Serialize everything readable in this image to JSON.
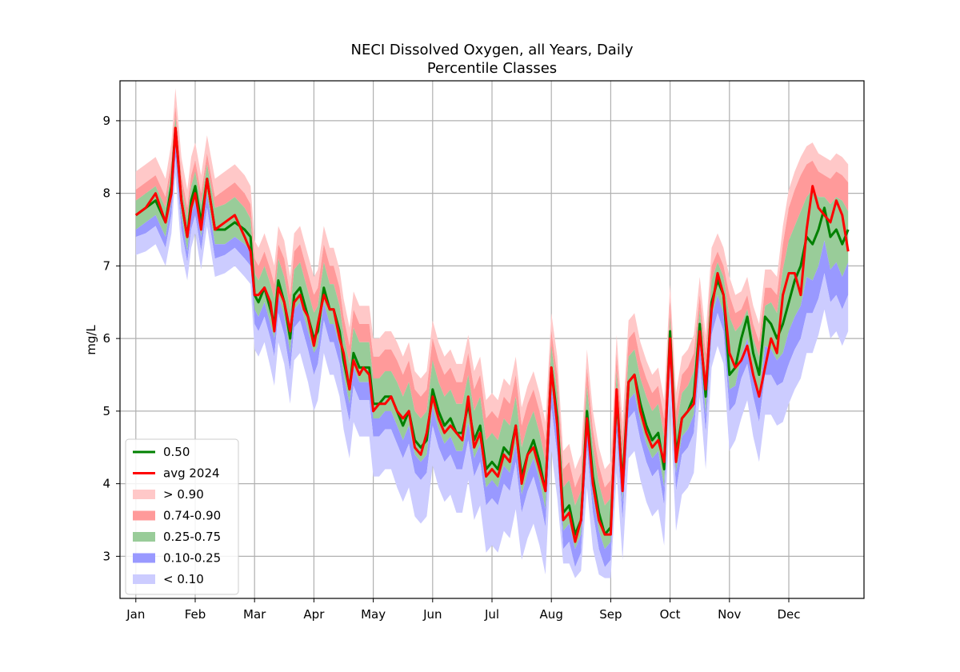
{
  "chart_data": {
    "type": "area",
    "title": "NECI Dissolved Oxygen, all Years, Daily",
    "subtitle": "Percentile Classes",
    "xlabel": "",
    "ylabel": "mg/L",
    "x_unit": "day of year",
    "xlim": [
      -8,
      368
    ],
    "ylim": [
      2.42,
      9.55
    ],
    "grid": true,
    "legend_position": "lower-left",
    "x_ticks": [
      {
        "label": "Jan",
        "day": 0
      },
      {
        "label": "Feb",
        "day": 30
      },
      {
        "label": "Mar",
        "day": 60
      },
      {
        "label": "Apr",
        "day": 90
      },
      {
        "label": "May",
        "day": 120
      },
      {
        "label": "Jun",
        "day": 150
      },
      {
        "label": "Jul",
        "day": 180
      },
      {
        "label": "Aug",
        "day": 210
      },
      {
        "label": "Sep",
        "day": 240
      },
      {
        "label": "Oct",
        "day": 270
      },
      {
        "label": "Nov",
        "day": 300
      },
      {
        "label": "Dec",
        "day": 330
      }
    ],
    "y_ticks": [
      3,
      4,
      5,
      6,
      7,
      8,
      9
    ],
    "colors": {
      "median": "#008000",
      "avg2024": "#ff0000",
      "band_gt90": "#ffc8c8",
      "band_74_90": "#ff9a9a",
      "band_25_75": "#99cc99",
      "band_10_25": "#9999ff",
      "band_lt10": "#ccccff"
    },
    "legend": [
      {
        "label": "0.50",
        "kind": "line",
        "color": "#008000"
      },
      {
        "label": "avg 2024",
        "kind": "line",
        "color": "#ff0000"
      },
      {
        "label": "> 0.90",
        "kind": "band",
        "color": "#ffc8c8"
      },
      {
        "label": "0.74-0.90",
        "kind": "band",
        "color": "#ff9a9a"
      },
      {
        "label": "0.25-0.75",
        "kind": "band",
        "color": "#99cc99"
      },
      {
        "label": "0.10-0.25",
        "kind": "band",
        "color": "#9999ff"
      },
      {
        "label": "< 0.10",
        "kind": "band",
        "color": "#ccccff"
      }
    ],
    "series": [
      {
        "name": "0.50",
        "x": [
          0,
          5,
          10,
          15,
          18,
          20,
          23,
          26,
          28,
          30,
          33,
          36,
          40,
          45,
          50,
          55,
          58,
          60,
          62,
          65,
          68,
          70,
          72,
          75,
          78,
          80,
          83,
          85,
          87,
          90,
          92,
          95,
          98,
          100,
          103,
          105,
          108,
          110,
          113,
          115,
          118,
          120,
          123,
          126,
          129,
          132,
          135,
          138,
          141,
          144,
          147,
          150,
          153,
          156,
          159,
          162,
          165,
          168,
          171,
          174,
          177,
          180,
          183,
          186,
          189,
          192,
          195,
          198,
          201,
          204,
          207,
          210,
          213,
          216,
          219,
          222,
          225,
          228,
          231,
          234,
          237,
          240,
          243,
          246,
          249,
          252,
          255,
          258,
          261,
          264,
          267,
          270,
          273,
          276,
          279,
          282,
          285,
          288,
          291,
          294,
          297,
          300,
          303,
          306,
          309,
          312,
          315,
          318,
          321,
          324,
          327,
          330,
          333,
          336,
          339,
          342,
          345,
          348,
          351,
          354,
          357,
          360
        ],
        "y": [
          7.7,
          7.8,
          7.9,
          7.6,
          8.1,
          8.9,
          7.9,
          7.4,
          7.9,
          8.1,
          7.6,
          8.2,
          7.5,
          7.5,
          7.6,
          7.5,
          7.4,
          6.6,
          6.5,
          6.7,
          6.4,
          6.2,
          6.8,
          6.5,
          6.0,
          6.6,
          6.7,
          6.5,
          6.3,
          6.0,
          6.1,
          6.7,
          6.4,
          6.4,
          6.1,
          5.7,
          5.3,
          5.8,
          5.6,
          5.6,
          5.6,
          5.1,
          5.1,
          5.2,
          5.2,
          5.0,
          4.8,
          5.0,
          4.6,
          4.5,
          4.6,
          5.3,
          5.0,
          4.8,
          4.9,
          4.7,
          4.7,
          5.1,
          4.6,
          4.8,
          4.2,
          4.3,
          4.2,
          4.5,
          4.4,
          4.8,
          4.1,
          4.4,
          4.6,
          4.3,
          3.9,
          5.6,
          4.9,
          3.6,
          3.7,
          3.3,
          3.5,
          5.0,
          4.1,
          3.6,
          3.3,
          3.4,
          5.2,
          4.0,
          5.4,
          5.5,
          5.1,
          4.8,
          4.6,
          4.7,
          4.2,
          6.1,
          4.4,
          4.9,
          5.0,
          5.2,
          6.2,
          5.2,
          6.5,
          6.8,
          6.6,
          5.5,
          5.6,
          6.0,
          6.3,
          5.8,
          5.5,
          6.3,
          6.2,
          6.0,
          6.2,
          6.5,
          6.8,
          7.0,
          7.4,
          7.3,
          7.5,
          7.8,
          7.4,
          7.5,
          7.3,
          7.5
        ]
      },
      {
        "name": "avg 2024",
        "x": [
          0,
          5,
          10,
          15,
          18,
          20,
          23,
          26,
          28,
          30,
          33,
          36,
          40,
          45,
          50,
          55,
          58,
          60,
          62,
          65,
          68,
          70,
          72,
          75,
          78,
          80,
          83,
          85,
          87,
          90,
          92,
          95,
          98,
          100,
          103,
          105,
          108,
          110,
          113,
          115,
          118,
          120,
          123,
          126,
          129,
          132,
          135,
          138,
          141,
          144,
          147,
          150,
          153,
          156,
          159,
          162,
          165,
          168,
          171,
          174,
          177,
          180,
          183,
          186,
          189,
          192,
          195,
          198,
          201,
          204,
          207,
          210,
          213,
          216,
          219,
          222,
          225,
          228,
          231,
          234,
          237,
          240,
          243,
          246,
          249,
          252,
          255,
          258,
          261,
          264,
          267,
          270,
          273,
          276,
          279,
          282,
          285,
          288,
          291,
          294,
          297,
          300,
          303,
          306,
          309,
          312,
          315,
          318,
          321,
          324,
          327,
          330,
          333,
          336,
          339,
          342,
          345,
          348,
          351,
          354,
          357,
          360
        ],
        "y": [
          7.7,
          7.8,
          8.0,
          7.6,
          8.0,
          8.9,
          7.9,
          7.4,
          7.8,
          8.0,
          7.5,
          8.2,
          7.5,
          7.6,
          7.7,
          7.4,
          7.2,
          6.6,
          6.6,
          6.7,
          6.5,
          6.1,
          6.7,
          6.5,
          6.1,
          6.5,
          6.6,
          6.4,
          6.3,
          5.9,
          6.2,
          6.6,
          6.4,
          6.4,
          6.0,
          5.8,
          5.3,
          5.7,
          5.5,
          5.6,
          5.5,
          5.0,
          5.1,
          5.1,
          5.2,
          5.0,
          4.9,
          5.0,
          4.5,
          4.4,
          4.7,
          5.2,
          4.9,
          4.7,
          4.8,
          4.7,
          4.6,
          5.2,
          4.5,
          4.7,
          4.1,
          4.2,
          4.1,
          4.4,
          4.3,
          4.8,
          4.0,
          4.4,
          4.5,
          4.2,
          3.9,
          5.6,
          4.8,
          3.5,
          3.6,
          3.2,
          3.5,
          4.9,
          4.0,
          3.5,
          3.3,
          3.3,
          5.3,
          3.9,
          5.4,
          5.5,
          5.0,
          4.7,
          4.5,
          4.6,
          4.3,
          6.0,
          4.3,
          4.9,
          5.0,
          5.1,
          6.1,
          5.3,
          6.4,
          6.9,
          6.6,
          5.8,
          5.6,
          5.7,
          5.9,
          5.5,
          5.2,
          5.6,
          6.0,
          5.8,
          6.6,
          6.9,
          6.9,
          6.6,
          7.5,
          8.1,
          7.8,
          7.7,
          7.6,
          7.9,
          7.7,
          7.2
        ]
      }
    ],
    "bands": {
      "x": [
        0,
        5,
        10,
        15,
        18,
        20,
        23,
        26,
        28,
        30,
        33,
        36,
        40,
        45,
        50,
        55,
        58,
        60,
        62,
        65,
        68,
        70,
        72,
        75,
        78,
        80,
        83,
        85,
        87,
        90,
        92,
        95,
        98,
        100,
        103,
        105,
        108,
        110,
        113,
        115,
        118,
        120,
        123,
        126,
        129,
        132,
        135,
        138,
        141,
        144,
        147,
        150,
        153,
        156,
        159,
        162,
        165,
        168,
        171,
        174,
        177,
        180,
        183,
        186,
        189,
        192,
        195,
        198,
        201,
        204,
        207,
        210,
        213,
        216,
        219,
        222,
        225,
        228,
        231,
        234,
        237,
        240,
        243,
        246,
        249,
        252,
        255,
        258,
        261,
        264,
        267,
        270,
        273,
        276,
        279,
        282,
        285,
        288,
        291,
        294,
        297,
        300,
        303,
        306,
        309,
        312,
        315,
        318,
        321,
        324,
        327,
        330,
        333,
        336,
        339,
        342,
        345,
        348,
        351,
        354,
        357,
        360
      ],
      "p90": [
        8.05,
        8.15,
        8.25,
        7.95,
        8.45,
        9.2,
        8.25,
        7.8,
        8.25,
        8.45,
        8.0,
        8.55,
        7.95,
        8.05,
        8.15,
        8.0,
        7.85,
        7.1,
        7.0,
        7.2,
        6.95,
        6.75,
        7.3,
        7.1,
        6.6,
        7.2,
        7.3,
        7.1,
        6.9,
        6.6,
        6.7,
        7.3,
        7.0,
        7.0,
        6.7,
        6.3,
        5.9,
        6.4,
        6.2,
        6.2,
        6.2,
        5.75,
        5.75,
        5.85,
        5.85,
        5.7,
        5.5,
        5.7,
        5.3,
        5.2,
        5.3,
        6.0,
        5.7,
        5.5,
        5.6,
        5.4,
        5.4,
        5.8,
        5.3,
        5.5,
        4.9,
        5.0,
        4.9,
        5.2,
        5.1,
        5.5,
        4.8,
        5.1,
        5.3,
        5.0,
        4.6,
        6.1,
        5.5,
        4.2,
        4.3,
        3.95,
        4.15,
        5.6,
        4.75,
        4.25,
        3.95,
        4.05,
        5.8,
        4.6,
        6.0,
        6.1,
        5.7,
        5.45,
        5.25,
        5.35,
        4.9,
        6.5,
        5.0,
        5.5,
        5.6,
        5.8,
        6.6,
        5.8,
        7.0,
        7.2,
        7.0,
        6.6,
        6.35,
        6.4,
        6.6,
        6.2,
        5.95,
        6.7,
        6.7,
        6.6,
        7.3,
        7.8,
        8.05,
        8.25,
        8.4,
        8.45,
        8.3,
        8.25,
        8.2,
        8.3,
        8.25,
        8.15
      ],
      "p74": [
        7.9,
        8.0,
        8.1,
        7.8,
        8.3,
        9.05,
        8.1,
        7.65,
        8.1,
        8.3,
        7.85,
        8.4,
        7.8,
        7.85,
        7.95,
        7.8,
        7.65,
        6.9,
        6.8,
        7.0,
        6.75,
        6.55,
        7.1,
        6.85,
        6.4,
        6.95,
        7.05,
        6.85,
        6.65,
        6.35,
        6.45,
        7.05,
        6.75,
        6.75,
        6.45,
        6.05,
        5.65,
        6.15,
        5.95,
        5.95,
        5.95,
        5.45,
        5.45,
        5.55,
        5.55,
        5.4,
        5.2,
        5.4,
        5.0,
        4.9,
        5.0,
        5.7,
        5.4,
        5.2,
        5.3,
        5.1,
        5.1,
        5.5,
        5.0,
        5.2,
        4.6,
        4.7,
        4.6,
        4.9,
        4.8,
        5.2,
        4.5,
        4.8,
        5.0,
        4.7,
        4.3,
        5.9,
        5.25,
        3.95,
        4.05,
        3.7,
        3.9,
        5.35,
        4.5,
        4.0,
        3.7,
        3.8,
        5.55,
        4.35,
        5.75,
        5.85,
        5.45,
        5.2,
        5.0,
        5.1,
        4.65,
        6.3,
        4.75,
        5.25,
        5.35,
        5.55,
        6.4,
        5.55,
        6.8,
        7.05,
        6.85,
        6.3,
        6.1,
        6.2,
        6.4,
        6.0,
        5.75,
        6.45,
        6.5,
        6.35,
        6.95,
        7.35,
        7.55,
        7.75,
        7.95,
        8.05,
        7.95,
        7.95,
        7.85,
        7.95,
        7.9,
        7.75
      ],
      "p25": [
        7.5,
        7.6,
        7.7,
        7.4,
        7.9,
        8.7,
        7.7,
        7.2,
        7.7,
        7.9,
        7.4,
        8.0,
        7.3,
        7.3,
        7.4,
        7.3,
        7.2,
        6.4,
        6.3,
        6.5,
        6.2,
        6.0,
        6.6,
        6.3,
        5.8,
        6.4,
        6.5,
        6.3,
        6.1,
        5.8,
        5.9,
        6.5,
        6.2,
        6.2,
        5.9,
        5.5,
        5.1,
        5.6,
        5.4,
        5.4,
        5.4,
        4.9,
        4.9,
        5.0,
        5.0,
        4.8,
        4.6,
        4.8,
        4.4,
        4.3,
        4.4,
        5.05,
        4.75,
        4.55,
        4.65,
        4.45,
        4.45,
        4.85,
        4.35,
        4.55,
        3.95,
        4.05,
        3.95,
        4.25,
        4.15,
        4.55,
        3.85,
        4.15,
        4.35,
        4.05,
        3.65,
        5.35,
        4.65,
        3.35,
        3.45,
        3.1,
        3.3,
        4.75,
        3.85,
        3.35,
        3.1,
        3.2,
        4.95,
        3.75,
        5.15,
        5.25,
        4.85,
        4.55,
        4.35,
        4.45,
        3.95,
        5.9,
        4.15,
        4.65,
        4.75,
        4.95,
        5.95,
        4.95,
        6.3,
        6.6,
        6.35,
        5.3,
        5.35,
        5.75,
        6.0,
        5.55,
        5.2,
        5.9,
        5.85,
        5.7,
        5.8,
        6.1,
        6.3,
        6.45,
        6.85,
        6.8,
        7.0,
        7.35,
        6.95,
        7.05,
        6.85,
        7.05
      ],
      "p10": [
        7.4,
        7.45,
        7.55,
        7.25,
        7.7,
        8.5,
        7.5,
        7.05,
        7.5,
        7.7,
        7.2,
        7.8,
        7.1,
        7.15,
        7.25,
        7.1,
        7.0,
        6.2,
        6.1,
        6.3,
        6.0,
        5.75,
        6.35,
        6.05,
        5.55,
        6.15,
        6.25,
        6.05,
        5.85,
        5.5,
        5.65,
        6.25,
        5.95,
        5.95,
        5.65,
        5.25,
        4.85,
        5.35,
        5.15,
        5.15,
        5.15,
        4.65,
        4.65,
        4.75,
        4.75,
        4.55,
        4.35,
        4.55,
        4.15,
        4.05,
        4.15,
        4.8,
        4.5,
        4.3,
        4.4,
        4.2,
        4.2,
        4.6,
        4.1,
        4.3,
        3.7,
        3.8,
        3.7,
        4.0,
        3.9,
        4.3,
        3.6,
        3.9,
        4.1,
        3.8,
        3.4,
        5.05,
        4.4,
        3.1,
        3.2,
        2.85,
        3.05,
        4.5,
        3.6,
        3.1,
        2.85,
        2.95,
        4.7,
        3.5,
        4.9,
        5.0,
        4.6,
        4.3,
        4.1,
        4.2,
        3.7,
        5.6,
        3.9,
        4.4,
        4.5,
        4.7,
        5.7,
        4.7,
        6.05,
        6.35,
        6.1,
        5.0,
        5.1,
        5.45,
        5.65,
        5.2,
        4.85,
        5.5,
        5.5,
        5.35,
        5.4,
        5.65,
        5.85,
        6.0,
        6.35,
        6.35,
        6.55,
        6.9,
        6.5,
        6.6,
        6.4,
        6.6
      ],
      "p00": [
        7.15,
        7.2,
        7.3,
        7.0,
        7.45,
        8.25,
        7.2,
        6.8,
        7.25,
        7.45,
        6.95,
        7.55,
        6.85,
        6.9,
        7.0,
        6.85,
        6.75,
        5.85,
        5.75,
        5.95,
        5.6,
        5.35,
        5.95,
        5.65,
        5.1,
        5.7,
        5.8,
        5.6,
        5.4,
        5.0,
        5.15,
        5.8,
        5.5,
        5.5,
        5.2,
        4.75,
        4.35,
        4.85,
        4.65,
        4.65,
        4.65,
        4.1,
        4.1,
        4.2,
        4.2,
        3.95,
        3.75,
        3.95,
        3.55,
        3.45,
        3.55,
        4.25,
        3.95,
        3.75,
        3.85,
        3.6,
        3.6,
        4.05,
        3.5,
        3.7,
        3.05,
        3.15,
        3.05,
        3.35,
        3.25,
        3.65,
        2.95,
        3.25,
        3.45,
        3.15,
        2.75,
        4.45,
        3.8,
        2.9,
        2.9,
        2.7,
        2.8,
        3.95,
        3.1,
        2.75,
        2.7,
        2.7,
        4.15,
        2.95,
        4.35,
        4.45,
        4.05,
        3.75,
        3.55,
        3.65,
        3.15,
        5.1,
        3.35,
        3.85,
        3.95,
        4.15,
        5.2,
        4.2,
        5.6,
        5.9,
        5.65,
        4.45,
        4.6,
        4.9,
        5.15,
        4.65,
        4.3,
        4.95,
        4.95,
        4.8,
        4.85,
        5.1,
        5.3,
        5.45,
        5.8,
        5.8,
        6.05,
        6.4,
        6.0,
        6.1,
        5.9,
        6.1
      ]
    }
  }
}
